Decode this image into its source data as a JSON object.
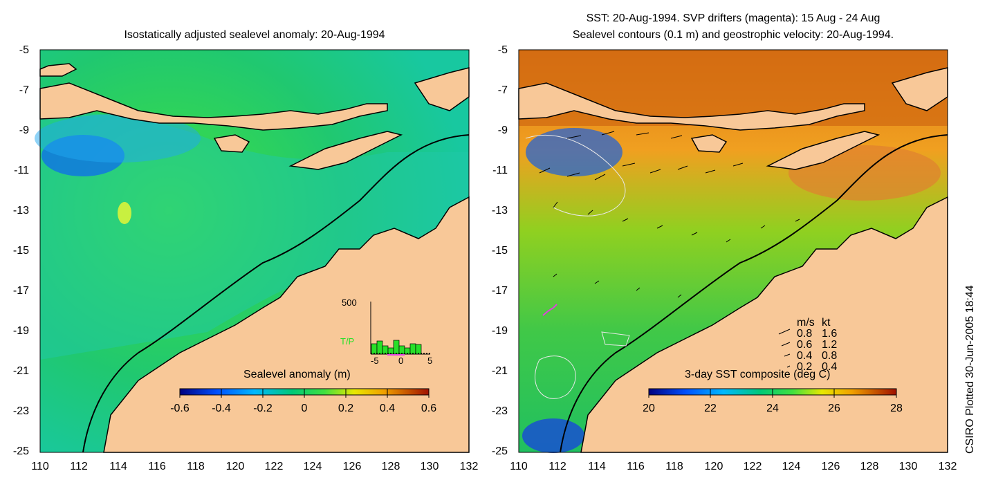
{
  "left_panel": {
    "title": "Isostatically adjusted sealevel anomaly: 20-Aug-1994",
    "colorbar_label": "Sealevel anomaly (m)",
    "colorbar_ticks": [
      "-0.6",
      "-0.4",
      "-0.2",
      "0",
      "0.2",
      "0.4",
      "0.6"
    ],
    "inset": {
      "ymax_label": "500",
      "series_label": "T/P",
      "x_ticks": [
        "-5",
        "0",
        "5"
      ]
    }
  },
  "right_panel": {
    "title_line1": "SST: 20-Aug-1994. SVP drifters (magenta): 15 Aug - 24 Aug",
    "title_line2": "Sealevel contours (0.1 m) and geostrophic velocity: 20-Aug-1994.",
    "colorbar_label": "3-day SST composite (deg C)",
    "colorbar_ticks": [
      "20",
      "22",
      "24",
      "26",
      "28"
    ],
    "velocity_legend": {
      "header_ms": "m/s",
      "header_kt": "kt",
      "rows": [
        {
          "ms": "0.8",
          "kt": "1.6"
        },
        {
          "ms": "0.6",
          "kt": "1.2"
        },
        {
          "ms": "0.4",
          "kt": "0.8"
        },
        {
          "ms": "0.2",
          "kt": "0.4"
        }
      ]
    }
  },
  "axes": {
    "lat_ticks": [
      "-5",
      "-7",
      "-9",
      "-11",
      "-13",
      "-15",
      "-17",
      "-19",
      "-21",
      "-23",
      "-25"
    ],
    "lon_ticks": [
      "110",
      "112",
      "114",
      "116",
      "118",
      "120",
      "122",
      "124",
      "126",
      "128",
      "130",
      "132"
    ]
  },
  "credit": "CSIRO Plotted 30-Jun-2005 18:44",
  "colors": {
    "land": "#f8c898",
    "ocean_ssl": "#18c888",
    "sst_warm": "#e08a20"
  }
}
